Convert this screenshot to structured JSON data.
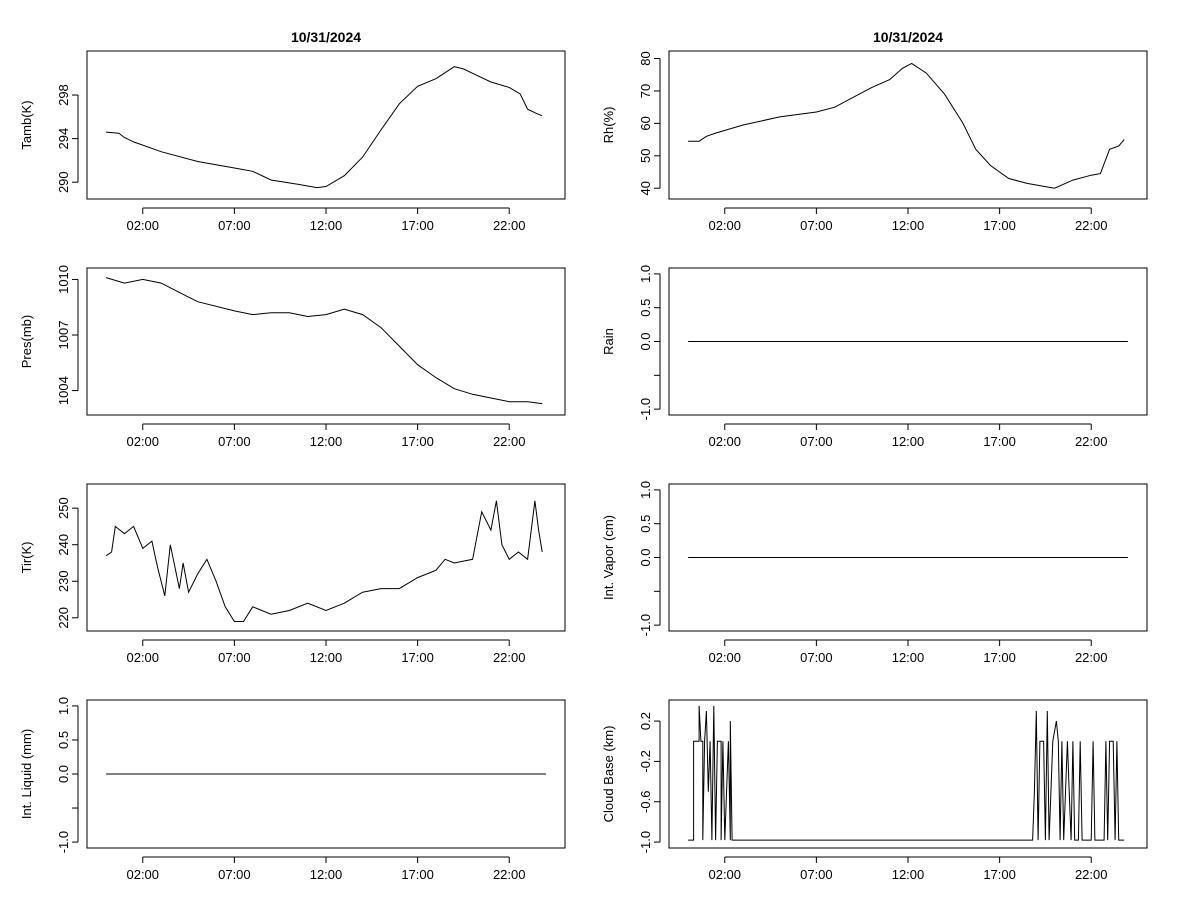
{
  "chart_data": [
    {
      "type": "line",
      "title": "10/31/2024",
      "xlabel": "",
      "ylabel": "Tamb(K)",
      "x_ticks": [
        "02:00",
        "07:00",
        "12:00",
        "17:00",
        "22:00"
      ],
      "xlim": [
        0,
        24
      ],
      "y_ticks": [
        290,
        294,
        298
      ],
      "ylim": [
        289,
        301.5
      ],
      "points": [
        [
          0,
          294.6
        ],
        [
          0.7,
          294.5
        ],
        [
          1,
          294.1
        ],
        [
          1.5,
          293.7
        ],
        [
          3,
          292.8
        ],
        [
          5,
          291.9
        ],
        [
          7,
          291.3
        ],
        [
          8,
          291
        ],
        [
          9,
          290.2
        ],
        [
          10.5,
          289.8
        ],
        [
          11.5,
          289.5
        ],
        [
          12,
          289.6
        ],
        [
          13,
          290.6
        ],
        [
          14,
          292.3
        ],
        [
          15,
          294.8
        ],
        [
          16,
          297.2
        ],
        [
          17,
          298.8
        ],
        [
          18,
          299.5
        ],
        [
          19,
          300.6
        ],
        [
          19.5,
          300.4
        ],
        [
          20,
          300
        ],
        [
          21,
          299.2
        ],
        [
          22,
          298.7
        ],
        [
          22.6,
          298.1
        ],
        [
          23,
          296.7
        ],
        [
          23.5,
          296.3
        ],
        [
          23.8,
          296.1
        ]
      ]
    },
    {
      "type": "line",
      "title": "10/31/2024",
      "xlabel": "",
      "ylabel": "Rh(%)",
      "x_ticks": [
        "02:00",
        "07:00",
        "12:00",
        "17:00",
        "22:00"
      ],
      "xlim": [
        0,
        24
      ],
      "y_ticks": [
        40,
        50,
        60,
        70,
        80
      ],
      "ylim": [
        38.5,
        80.5
      ],
      "points": [
        [
          0,
          54.5
        ],
        [
          0.6,
          54.5
        ],
        [
          1,
          56
        ],
        [
          1.5,
          57
        ],
        [
          3,
          59.5
        ],
        [
          5,
          62
        ],
        [
          7,
          63.5
        ],
        [
          8,
          65
        ],
        [
          9,
          68
        ],
        [
          10,
          71
        ],
        [
          11,
          73.5
        ],
        [
          11.7,
          77
        ],
        [
          12.2,
          78.5
        ],
        [
          13,
          75.5
        ],
        [
          14,
          69
        ],
        [
          15,
          60
        ],
        [
          15.7,
          52
        ],
        [
          16.5,
          47
        ],
        [
          17.5,
          43
        ],
        [
          18.5,
          41.5
        ],
        [
          19.5,
          40.5
        ],
        [
          20,
          40
        ],
        [
          21,
          42.5
        ],
        [
          22,
          44
        ],
        [
          22.5,
          44.5
        ],
        [
          23,
          52
        ],
        [
          23.5,
          53
        ],
        [
          23.8,
          55
        ]
      ]
    },
    {
      "type": "line",
      "title": "",
      "xlabel": "",
      "ylabel": "Pres(mb)",
      "x_ticks": [
        "02:00",
        "07:00",
        "12:00",
        "17:00",
        "22:00"
      ],
      "xlim": [
        0,
        24
      ],
      "y_ticks": [
        1004,
        1007,
        1010
      ],
      "ylim": [
        1003,
        1010.3
      ],
      "points": [
        [
          0,
          1010.1
        ],
        [
          1,
          1009.8
        ],
        [
          2,
          1010
        ],
        [
          3,
          1009.8
        ],
        [
          4,
          1009.3
        ],
        [
          5,
          1008.8
        ],
        [
          7,
          1008.3
        ],
        [
          8,
          1008.1
        ],
        [
          9,
          1008.2
        ],
        [
          10,
          1008.2
        ],
        [
          11,
          1008
        ],
        [
          12,
          1008.1
        ],
        [
          13,
          1008.4
        ],
        [
          14,
          1008.1
        ],
        [
          15,
          1007.4
        ],
        [
          16,
          1006.4
        ],
        [
          17,
          1005.4
        ],
        [
          18,
          1004.7
        ],
        [
          19,
          1004.1
        ],
        [
          20,
          1003.8
        ],
        [
          21,
          1003.6
        ],
        [
          22,
          1003.4
        ],
        [
          23,
          1003.4
        ],
        [
          23.8,
          1003.3
        ]
      ]
    },
    {
      "type": "line",
      "title": "",
      "xlabel": "",
      "ylabel": "Rain",
      "x_ticks": [
        "02:00",
        "07:00",
        "12:00",
        "17:00",
        "22:00"
      ],
      "xlim": [
        0,
        24
      ],
      "y_ticks": [
        -1.0,
        0.0,
        0.5,
        1.0
      ],
      "y_tick_labels": [
        "-1.0",
        "0.0",
        "0.5",
        "1.0"
      ],
      "extra_y_ticks": [
        -0.5
      ],
      "ylim": [
        -1.0,
        1.0
      ],
      "points": [
        [
          0,
          0
        ],
        [
          24,
          0
        ]
      ]
    },
    {
      "type": "line",
      "title": "",
      "xlabel": "",
      "ylabel": "Tir(K)",
      "x_ticks": [
        "02:00",
        "07:00",
        "12:00",
        "17:00",
        "22:00"
      ],
      "xlim": [
        0,
        24
      ],
      "y_ticks": [
        220,
        230,
        240,
        250
      ],
      "ylim": [
        218,
        255
      ],
      "points": [
        [
          0,
          237
        ],
        [
          0.3,
          238
        ],
        [
          0.5,
          245
        ],
        [
          1,
          243
        ],
        [
          1.5,
          245
        ],
        [
          2,
          239
        ],
        [
          2.5,
          241
        ],
        [
          2.8,
          234
        ],
        [
          3.2,
          226
        ],
        [
          3.5,
          240
        ],
        [
          4,
          228
        ],
        [
          4.2,
          235
        ],
        [
          4.5,
          227
        ],
        [
          5,
          232
        ],
        [
          5.5,
          236
        ],
        [
          6,
          230
        ],
        [
          6.5,
          223
        ],
        [
          7,
          219
        ],
        [
          7.5,
          219
        ],
        [
          8,
          223
        ],
        [
          9,
          221
        ],
        [
          10,
          222
        ],
        [
          11,
          224
        ],
        [
          12,
          222
        ],
        [
          13,
          224
        ],
        [
          14,
          227
        ],
        [
          15,
          228
        ],
        [
          16,
          228
        ],
        [
          17,
          231
        ],
        [
          18,
          233
        ],
        [
          18.5,
          236
        ],
        [
          19,
          235
        ],
        [
          20,
          236
        ],
        [
          20.5,
          249
        ],
        [
          21,
          244
        ],
        [
          21.3,
          252
        ],
        [
          21.6,
          240
        ],
        [
          22,
          236
        ],
        [
          22.5,
          238
        ],
        [
          23,
          236
        ],
        [
          23.4,
          252
        ],
        [
          23.6,
          244
        ],
        [
          23.8,
          238
        ]
      ]
    },
    {
      "type": "line",
      "title": "",
      "xlabel": "",
      "ylabel": "Int. Vapor (cm)",
      "x_ticks": [
        "02:00",
        "07:00",
        "12:00",
        "17:00",
        "22:00"
      ],
      "xlim": [
        0,
        24
      ],
      "y_ticks": [
        -1.0,
        0.0,
        0.5,
        1.0
      ],
      "y_tick_labels": [
        "-1.0",
        "0.0",
        "0.5",
        "1.0"
      ],
      "extra_y_ticks": [
        -0.5
      ],
      "ylim": [
        -1.0,
        1.0
      ],
      "points": [
        [
          0,
          0
        ],
        [
          24,
          0
        ]
      ]
    },
    {
      "type": "line",
      "title": "",
      "xlabel": "",
      "ylabel": "Int. Liquid (mm)",
      "x_ticks": [
        "02:00",
        "07:00",
        "12:00",
        "17:00",
        "22:00"
      ],
      "xlim": [
        0,
        24
      ],
      "y_ticks": [
        -1.0,
        0.0,
        0.5,
        1.0
      ],
      "y_tick_labels": [
        "-1.0",
        "0.0",
        "0.5",
        "1.0"
      ],
      "extra_y_ticks": [
        -0.5
      ],
      "ylim": [
        -1.0,
        1.0
      ],
      "points": [
        [
          0,
          0
        ],
        [
          24,
          0
        ]
      ]
    },
    {
      "type": "line",
      "title": "",
      "xlabel": "",
      "ylabel": "Cloud Base (km)",
      "x_ticks": [
        "02:00",
        "07:00",
        "12:00",
        "17:00",
        "22:00"
      ],
      "xlim": [
        0,
        24
      ],
      "y_ticks": [
        -1.0,
        -0.6,
        -0.2,
        0.2
      ],
      "y_tick_labels": [
        "-1.0",
        "-0.6",
        "-0.2",
        "0.2"
      ],
      "ylim": [
        -1.0,
        0.35
      ],
      "points": [
        [
          0,
          -0.98
        ],
        [
          0.3,
          -0.98
        ],
        [
          0.3,
          0.0
        ],
        [
          0.6,
          0.0
        ],
        [
          0.6,
          0.35
        ],
        [
          0.7,
          0.0
        ],
        [
          0.8,
          0.0
        ],
        [
          0.8,
          -0.98
        ],
        [
          0.9,
          0.0
        ],
        [
          1.0,
          0.3
        ],
        [
          1.1,
          -0.5
        ],
        [
          1.2,
          0.0
        ],
        [
          1.3,
          -0.98
        ],
        [
          1.4,
          0.35
        ],
        [
          1.5,
          -0.98
        ],
        [
          1.6,
          0.0
        ],
        [
          1.8,
          0.0
        ],
        [
          1.8,
          -0.98
        ],
        [
          1.9,
          0.0
        ],
        [
          2.0,
          -0.98
        ],
        [
          2.2,
          0.0
        ],
        [
          2.3,
          -0.98
        ],
        [
          2.3,
          0.2
        ],
        [
          2.4,
          -0.98
        ],
        [
          8,
          -0.98
        ],
        [
          15,
          -0.98
        ],
        [
          18.8,
          -0.98
        ],
        [
          18.9,
          -0.5
        ],
        [
          19.0,
          0.3
        ],
        [
          19.1,
          -0.98
        ],
        [
          19.2,
          0.0
        ],
        [
          19.4,
          0.0
        ],
        [
          19.5,
          -0.98
        ],
        [
          19.6,
          0.3
        ],
        [
          19.7,
          -0.98
        ],
        [
          19.9,
          0.0
        ],
        [
          20.1,
          0.2
        ],
        [
          20.2,
          0.0
        ],
        [
          20.3,
          -0.98
        ],
        [
          20.4,
          0.0
        ],
        [
          20.5,
          -0.98
        ],
        [
          20.7,
          0.0
        ],
        [
          20.8,
          -0.5
        ],
        [
          20.9,
          -0.98
        ],
        [
          21.0,
          0.0
        ],
        [
          21.1,
          -0.98
        ],
        [
          21.3,
          -0.98
        ],
        [
          21.4,
          0.0
        ],
        [
          21.5,
          -0.98
        ],
        [
          22.0,
          -0.98
        ],
        [
          22.1,
          0.0
        ],
        [
          22.2,
          -0.98
        ],
        [
          22.7,
          -0.98
        ],
        [
          22.8,
          0.0
        ],
        [
          22.9,
          -0.98
        ],
        [
          23.0,
          0.0
        ],
        [
          23.2,
          0.0
        ],
        [
          23.3,
          -0.98
        ],
        [
          23.4,
          0.0
        ],
        [
          23.5,
          -0.98
        ],
        [
          23.8,
          -0.98
        ]
      ]
    }
  ]
}
